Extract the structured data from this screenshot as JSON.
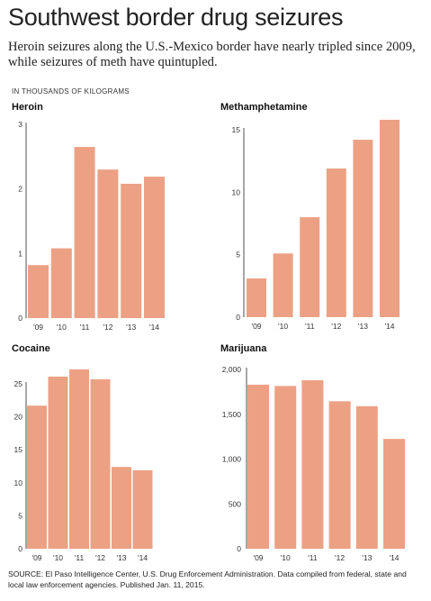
{
  "header": {
    "title": "Southwest border drug seizures",
    "subtitle": "Heroin seizures along the U.S.-Mexico border have nearly tripled since 2009, while seizures of meth have quintupled.",
    "units_label": "IN THOUSANDS OF KILOGRAMS"
  },
  "footer": {
    "source": "SOURCE: El Paso Intelligence Center, U.S. Drug Enforcement Administration. Data compiled from federal, state and local law enforcement agencies. Published Jan. 11, 2015."
  },
  "colors": {
    "bar": "#eda184",
    "axis": "#222222"
  },
  "chart_data": [
    {
      "type": "bar",
      "title": "Heroin",
      "categories": [
        "'09",
        "'10",
        "'11",
        "'12",
        "'13",
        "'14"
      ],
      "values": [
        0.82,
        1.08,
        2.65,
        2.3,
        2.08,
        2.19
      ],
      "yticks": [
        0,
        1,
        2,
        3
      ],
      "ytick_labels": [
        "0",
        "1",
        "2",
        "3"
      ],
      "ylim": [
        0,
        3
      ]
    },
    {
      "type": "bar",
      "title": "Methamphetamine",
      "categories": [
        "'09",
        "'10",
        "'11",
        "'12",
        "'13",
        "'14"
      ],
      "values": [
        3.1,
        5.1,
        8.0,
        11.9,
        14.2,
        15.8
      ],
      "yticks": [
        0,
        5,
        10,
        15
      ],
      "ytick_labels": [
        "0",
        "5",
        "10",
        "15"
      ],
      "ylim": [
        0,
        15
      ]
    },
    {
      "type": "bar",
      "title": "Cocaine",
      "categories": [
        "'09",
        "'10",
        "'11",
        "'12",
        "'13",
        "'14"
      ],
      "values": [
        21.7,
        26.1,
        27.2,
        25.7,
        12.4,
        11.9
      ],
      "yticks": [
        0,
        5,
        10,
        15,
        20,
        25
      ],
      "ytick_labels": [
        "0",
        "5",
        "10",
        "15",
        "20",
        "25"
      ],
      "ylim": [
        0,
        25
      ]
    },
    {
      "type": "bar",
      "title": "Marijuana",
      "categories": [
        "'09",
        "'10",
        "'11",
        "'12",
        "'13",
        "'14"
      ],
      "values": [
        1830,
        1815,
        1880,
        1645,
        1590,
        1225
      ],
      "yticks": [
        0,
        500,
        1000,
        1500,
        2000
      ],
      "ytick_labels": [
        "0",
        "500",
        "1,000",
        "1,500",
        "2,000"
      ],
      "ylim": [
        0,
        2000
      ]
    }
  ]
}
